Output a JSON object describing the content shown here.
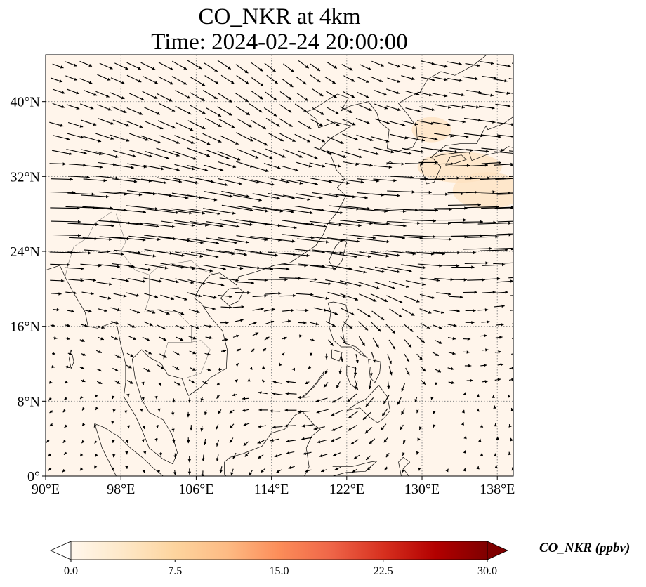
{
  "title_line1": "CO_NKR at 4km",
  "title_line2": "Time: 2024-02-24 20:00:00",
  "map": {
    "extent": {
      "lon_min": 90,
      "lon_max": 139.7,
      "lat_min": 0,
      "lat_max": 45
    },
    "lon_ticks": [
      90,
      98,
      106,
      114,
      122,
      130,
      138
    ],
    "lon_tick_labels": [
      "90°E",
      "98°E",
      "106°E",
      "114°E",
      "122°E",
      "130°E",
      "138°E"
    ],
    "lat_ticks": [
      0,
      8,
      16,
      24,
      32,
      40
    ],
    "lat_tick_labels": [
      "0°",
      "8°N",
      "16°N",
      "24°N",
      "32°N",
      "40°N"
    ],
    "gridlines": "dotted",
    "coastlines": true,
    "background_color": "#fff5eb",
    "highlight_color": "#fee2c0",
    "vectors": "wind arrows (black)"
  },
  "colorbar": {
    "label": "CO_NKR (ppbv)",
    "ticks": [
      "0.0",
      "7.5",
      "15.0",
      "22.5",
      "30.0"
    ],
    "vmin": 0,
    "vmax": 30,
    "extend": "both",
    "colormap": "OrRd",
    "colors": [
      "#fff7ec",
      "#fee8c8",
      "#fdd49e",
      "#fdbb84",
      "#fc8d59",
      "#ef6548",
      "#d7301f",
      "#b30000",
      "#7f0000"
    ]
  }
}
